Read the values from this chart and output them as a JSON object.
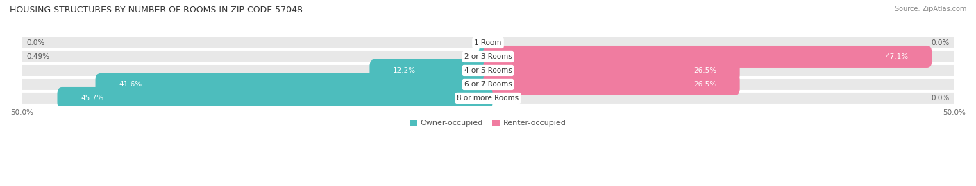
{
  "title": "HOUSING STRUCTURES BY NUMBER OF ROOMS IN ZIP CODE 57048",
  "source": "Source: ZipAtlas.com",
  "categories": [
    "1 Room",
    "2 or 3 Rooms",
    "4 or 5 Rooms",
    "6 or 7 Rooms",
    "8 or more Rooms"
  ],
  "owner_values": [
    0.0,
    0.49,
    12.2,
    41.6,
    45.7
  ],
  "renter_values": [
    0.0,
    47.1,
    26.5,
    26.5,
    0.0
  ],
  "owner_labels": [
    "0.0%",
    "0.49%",
    "12.2%",
    "41.6%",
    "45.7%"
  ],
  "renter_labels": [
    "0.0%",
    "47.1%",
    "26.5%",
    "26.5%",
    "0.0%"
  ],
  "owner_color": "#4dbdbd",
  "renter_color": "#f07ca0",
  "row_bg_color": "#e8e8e8",
  "max_value": 50.0,
  "label_fontsize": 7.5,
  "title_fontsize": 9,
  "source_fontsize": 7,
  "legend_fontsize": 8,
  "category_fontsize": 7.5,
  "value_fontsize": 7.5,
  "background_color": "#ffffff",
  "text_color_dark": "#555555",
  "text_color_light": "#ffffff"
}
